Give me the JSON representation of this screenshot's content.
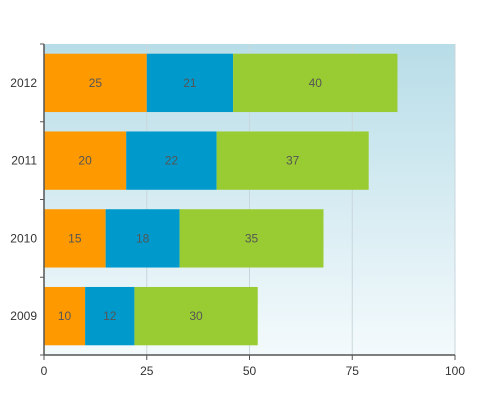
{
  "chart_data": {
    "type": "bar",
    "orientation": "horizontal",
    "stacked": true,
    "title": "",
    "xlabel": "",
    "ylabel": "",
    "categories": [
      "2012",
      "2011",
      "2010",
      "2009"
    ],
    "series": [
      {
        "values": [
          25,
          20,
          15,
          10
        ],
        "color": "#ff9900"
      },
      {
        "values": [
          21,
          22,
          18,
          12
        ],
        "color": "#0099cc"
      },
      {
        "values": [
          40,
          37,
          35,
          30
        ],
        "color": "#99cc33"
      }
    ],
    "xlim": [
      0,
      100
    ],
    "xticks": [
      "0",
      "25",
      "50",
      "75",
      "100"
    ],
    "grid": true,
    "legend": "none",
    "data_labels": true,
    "plot_background": [
      "#b8dde8",
      "#f4fafc"
    ]
  }
}
